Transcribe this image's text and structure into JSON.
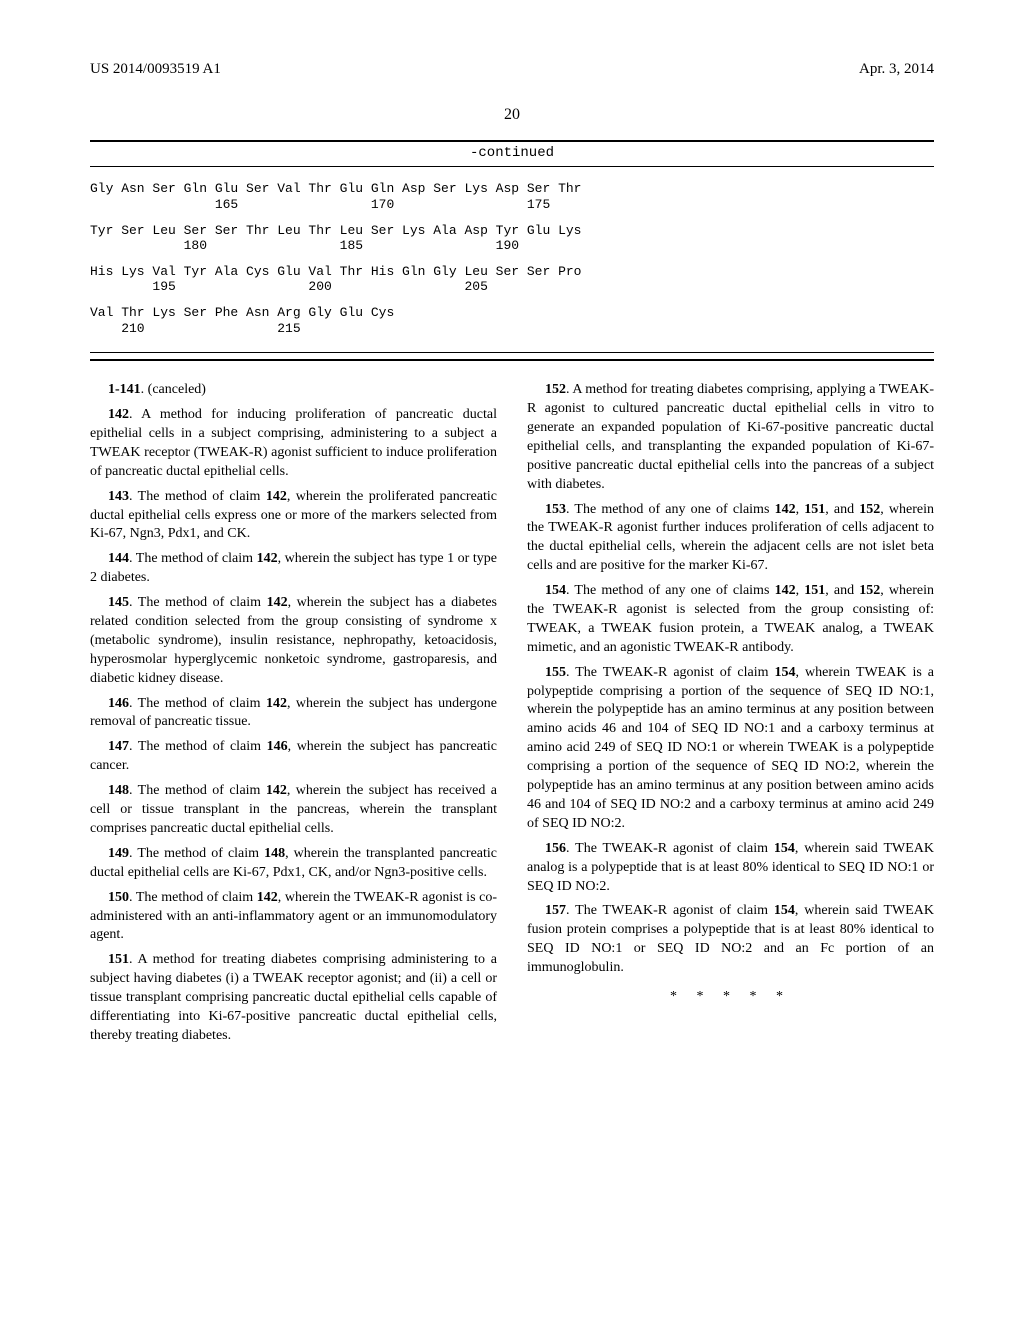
{
  "header": {
    "pub_number": "US 2014/0093519 A1",
    "pub_date": "Apr. 3, 2014"
  },
  "page_number": "20",
  "sequence": {
    "continued_label": "-continued",
    "rows": [
      {
        "aa": "Gly Asn Ser Gln Glu Ser Val Thr Glu Gln Asp Ser Lys Asp Ser Thr",
        "nums": "                165                 170                 175"
      },
      {
        "aa": "Tyr Ser Leu Ser Ser Thr Leu Thr Leu Ser Lys Ala Asp Tyr Glu Lys",
        "nums": "            180                 185                 190"
      },
      {
        "aa": "His Lys Val Tyr Ala Cys Glu Val Thr His Gln Gly Leu Ser Ser Pro",
        "nums": "        195                 200                 205"
      },
      {
        "aa": "Val Thr Lys Ser Phe Asn Arg Gly Glu Cys",
        "nums": "    210                 215"
      }
    ]
  },
  "claims": [
    {
      "num": "1-141",
      "text": ". (canceled)"
    },
    {
      "num": "142",
      "text": ". A method for inducing proliferation of pancreatic ductal epithelial cells in a subject comprising, administering to a subject a TWEAK receptor (TWEAK-R) agonist sufficient to induce proliferation of pancreatic ductal epithelial cells."
    },
    {
      "num": "143",
      "text": ". The method of claim 142, wherein the proliferated pancreatic ductal epithelial cells express one or more of the markers selected from Ki-67, Ngn3, Pdx1, and CK."
    },
    {
      "num": "144",
      "text": ". The method of claim 142, wherein the subject has type 1 or type 2 diabetes."
    },
    {
      "num": "145",
      "text": ". The method of claim 142, wherein the subject has a diabetes related condition selected from the group consisting of syndrome x (metabolic syndrome), insulin resistance, nephropathy, ketoacidosis, hyperosmolar hyperglycemic nonketoic syndrome, gastroparesis, and diabetic kidney disease."
    },
    {
      "num": "146",
      "text": ". The method of claim 142, wherein the subject has undergone removal of pancreatic tissue."
    },
    {
      "num": "147",
      "text": ". The method of claim 146, wherein the subject has pancreatic cancer."
    },
    {
      "num": "148",
      "text": ". The method of claim 142, wherein the subject has received a cell or tissue transplant in the pancreas, wherein the transplant comprises pancreatic ductal epithelial cells."
    },
    {
      "num": "149",
      "text": ". The method of claim 148, wherein the transplanted pancreatic ductal epithelial cells are Ki-67, Pdx1, CK, and/or Ngn3-positive cells."
    },
    {
      "num": "150",
      "text": ". The method of claim 142, wherein the TWEAK-R agonist is co-administered with an anti-inflammatory agent or an immunomodulatory agent."
    },
    {
      "num": "151",
      "text": ". A method for treating diabetes comprising administering to a subject having diabetes (i) a TWEAK receptor agonist; and (ii) a cell or tissue transplant comprising pancreatic ductal epithelial cells capable of differentiating into Ki-67-positive pancreatic ductal epithelial cells, thereby treating diabetes."
    },
    {
      "num": "152",
      "text": ". A method for treating diabetes comprising, applying a TWEAK-R agonist to cultured pancreatic ductal epithelial cells in vitro to generate an expanded population of Ki-67-positive pancreatic ductal epithelial cells, and transplanting the expanded population of Ki-67-positive pancreatic ductal epithelial cells into the pancreas of a subject with diabetes."
    },
    {
      "num": "153",
      "text": ". The method of any one of claims 142, 151, and 152, wherein the TWEAK-R agonist further induces proliferation of cells adjacent to the ductal epithelial cells, wherein the adjacent cells are not islet beta cells and are positive for the marker Ki-67."
    },
    {
      "num": "154",
      "text": ". The method of any one of claims 142, 151, and 152, wherein the TWEAK-R agonist is selected from the group consisting of: TWEAK, a TWEAK fusion protein, a TWEAK analog, a TWEAK mimetic, and an agonistic TWEAK-R antibody."
    },
    {
      "num": "155",
      "text": ". The TWEAK-R agonist of claim 154, wherein TWEAK is a polypeptide comprising a portion of the sequence of SEQ ID NO:1, wherein the polypeptide has an amino terminus at any position between amino acids 46 and 104 of SEQ ID NO:1 and a carboxy terminus at amino acid 249 of SEQ ID NO:1 or wherein TWEAK is a polypeptide comprising a portion of the sequence of SEQ ID NO:2, wherein the polypeptide has an amino terminus at any position between amino acids 46 and 104 of SEQ ID NO:2 and a carboxy terminus at amino acid 249 of SEQ ID NO:2."
    },
    {
      "num": "156",
      "text": ". The TWEAK-R agonist of claim 154, wherein said TWEAK analog is a polypeptide that is at least 80% identical to SEQ ID NO:1 or SEQ ID NO:2."
    },
    {
      "num": "157",
      "text": ". The TWEAK-R agonist of claim 154, wherein said TWEAK fusion protein comprises a polypeptide that is at least 80% identical to SEQ ID NO:1 or SEQ ID NO:2 and an Fc portion of an immunoglobulin."
    }
  ],
  "ending": "* * * * *",
  "bold_refs": [
    "142",
    "146",
    "148",
    "151",
    "152",
    "154"
  ]
}
